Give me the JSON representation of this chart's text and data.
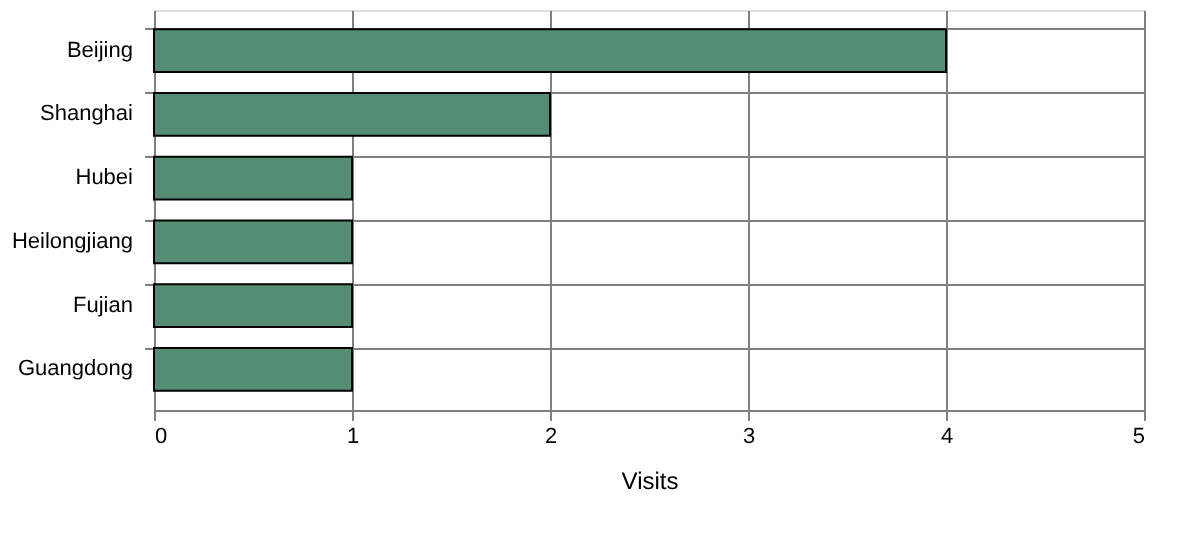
{
  "chart_data": {
    "type": "bar",
    "orientation": "horizontal",
    "xlabel": "Visits",
    "categories": [
      "Beijing",
      "Shanghai",
      "Hubei",
      "Heilongjiang",
      "Fujian",
      "Guangdong"
    ],
    "values": [
      4,
      2,
      1,
      1,
      1,
      1
    ],
    "color": "#548c74",
    "xlim": [
      0,
      5
    ],
    "xticks": [
      0,
      1,
      2,
      3,
      4,
      5
    ],
    "grid": true
  }
}
